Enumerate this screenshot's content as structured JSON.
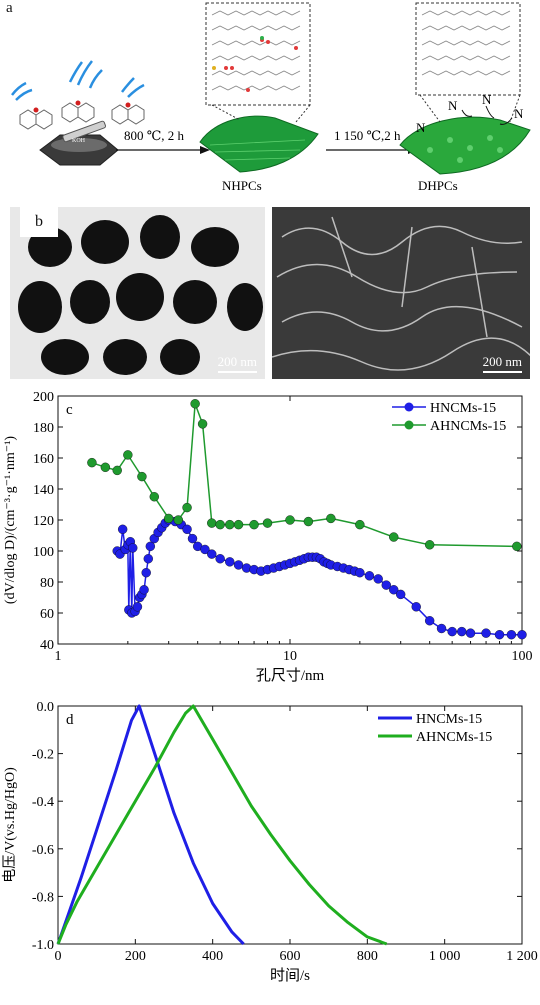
{
  "panel_a": {
    "label": "a",
    "step1": "800 ℃, 2 h",
    "step2": "1 150 ℃,2 h",
    "product1": "NHPCs",
    "product2": "DHPCs",
    "mortar_text": "KOH",
    "n_labels": [
      "N",
      "N",
      "N",
      "N"
    ]
  },
  "panel_b": {
    "label": "b",
    "scale_left": "200 nm",
    "scale_right": "200 nm"
  },
  "chart_data": [
    {
      "type": "scatter",
      "panel_label": "c",
      "xlabel": "孔尺寸/nm",
      "ylabel": "(dV/dlog D)/(cm⁻³·g⁻¹·nm⁻¹)",
      "x_scale": "log",
      "xlim": [
        1,
        100
      ],
      "ylim": [
        40,
        200
      ],
      "x_ticks": [
        1,
        10,
        100
      ],
      "x_tick_labels": [
        "1",
        "10",
        "100"
      ],
      "y_ticks": [
        40,
        60,
        80,
        100,
        120,
        140,
        160,
        180,
        200
      ],
      "y_tick_labels": [
        "40",
        "60",
        "80",
        "100",
        "120",
        "140",
        "160",
        "180",
        "200"
      ],
      "legend_position": "top-right",
      "series": [
        {
          "name": "HNCMs-15",
          "color": "#1f1fe6",
          "x": [
            1.8,
            1.85,
            1.9,
            1.95,
            2.0,
            2.02,
            2.05,
            2.08,
            2.1,
            2.15,
            2.2,
            2.25,
            2.3,
            2.35,
            2.4,
            2.45,
            2.5,
            2.6,
            2.7,
            2.8,
            2.9,
            3.0,
            3.2,
            3.4,
            3.6,
            3.8,
            4.0,
            4.3,
            4.6,
            5.0,
            5.5,
            6.0,
            6.5,
            7.0,
            7.5,
            8.0,
            8.5,
            9.0,
            9.5,
            10,
            10.5,
            11,
            11.5,
            12,
            12.5,
            13,
            13.5,
            14,
            14.5,
            15,
            16,
            17,
            18,
            19,
            20,
            22,
            24,
            26,
            28,
            30,
            35,
            40,
            45,
            50,
            55,
            60,
            70,
            80,
            90,
            100
          ],
          "y": [
            100,
            98,
            114,
            101,
            104,
            62,
            106,
            60,
            102,
            61,
            64,
            70,
            72,
            75,
            86,
            95,
            103,
            108,
            112,
            115,
            118,
            120,
            119,
            117,
            114,
            108,
            103,
            101,
            98,
            95,
            93,
            91,
            89,
            88,
            87,
            88,
            89,
            90,
            91,
            92,
            93,
            94,
            95,
            96,
            96,
            96,
            95,
            93,
            92,
            91,
            90,
            89,
            88,
            87,
            86,
            84,
            82,
            78,
            75,
            72,
            64,
            55,
            50,
            48,
            48,
            47,
            47,
            46,
            46,
            46
          ]
        },
        {
          "name": "AHNCMs-15",
          "color": "#1f9a2e",
          "x": [
            1.4,
            1.6,
            1.8,
            2.0,
            2.3,
            2.6,
            3.0,
            3.3,
            3.6,
            3.9,
            4.2,
            4.6,
            5.0,
            5.5,
            6.0,
            7.0,
            8.0,
            10.0,
            12.0,
            15.0,
            20.0,
            28.0,
            40.0,
            95.0
          ],
          "y": [
            157,
            154,
            152,
            162,
            148,
            135,
            121,
            120,
            128,
            195,
            182,
            118,
            117,
            117,
            117,
            117,
            118,
            120,
            119,
            121,
            117,
            109,
            104,
            103
          ]
        }
      ]
    },
    {
      "type": "line",
      "panel_label": "d",
      "xlabel": "时间/s",
      "ylabel": "电压/V(vs.Hg/HgO)",
      "xlim": [
        0,
        1200
      ],
      "ylim": [
        -1.0,
        0.0
      ],
      "x_ticks": [
        0,
        200,
        400,
        600,
        800,
        1000,
        1200
      ],
      "x_tick_labels": [
        "0",
        "200",
        "400",
        "600",
        "800",
        "1 000",
        "1 200"
      ],
      "y_ticks": [
        -1.0,
        -0.8,
        -0.6,
        -0.4,
        -0.2,
        0.0
      ],
      "y_tick_labels": [
        "-1.0",
        "-0.8",
        "-0.6",
        "-0.4",
        "-0.2",
        "0.0"
      ],
      "legend_position": "top-right",
      "series": [
        {
          "name": "HNCMs-15",
          "color": "#1f1fe6",
          "x": [
            0,
            30,
            60,
            100,
            150,
            190,
            210,
            250,
            300,
            350,
            400,
            450,
            480
          ],
          "y": [
            -1.0,
            -0.86,
            -0.72,
            -0.52,
            -0.27,
            -0.06,
            0.0,
            -0.2,
            -0.45,
            -0.66,
            -0.83,
            -0.95,
            -1.0
          ]
        },
        {
          "name": "AHNCMs-15",
          "color": "#1fae1f",
          "x": [
            0,
            20,
            50,
            100,
            150,
            200,
            250,
            300,
            330,
            350,
            400,
            450,
            500,
            550,
            600,
            650,
            700,
            750,
            800,
            850
          ],
          "y": [
            -1.0,
            -0.92,
            -0.82,
            -0.68,
            -0.54,
            -0.4,
            -0.26,
            -0.11,
            -0.03,
            0.0,
            -0.14,
            -0.28,
            -0.42,
            -0.54,
            -0.65,
            -0.75,
            -0.84,
            -0.91,
            -0.97,
            -1.0
          ]
        }
      ]
    }
  ]
}
